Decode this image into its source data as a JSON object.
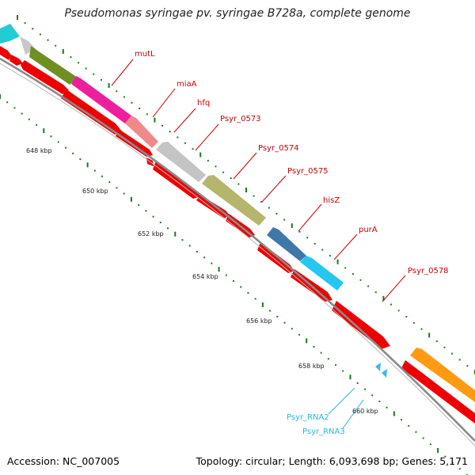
{
  "title": "Pseudomonas syringae pv. syringae B728a, complete genome",
  "footer": {
    "accession": "Accession: NC_007005",
    "summary": "Topology: circular; Length: 6,093,698 bp; Genes: 5,171"
  },
  "colors": {
    "cds": "#ee0000",
    "backbone": "#888888",
    "tick": "#1a7a1a",
    "gene_label": "#cc0000",
    "rna_label": "#22bbdd"
  },
  "ticks": [
    "648 kbp",
    "650 kbp",
    "652 kbp",
    "654 kbp",
    "656 kbp",
    "658 kbp",
    "660 kbp"
  ],
  "gene_labels": [
    "mutL",
    "miaA",
    "hfq",
    "Psyr_0573",
    "Psyr_0574",
    "Psyr_0575",
    "hisZ",
    "purA",
    "Psyr_0578"
  ],
  "rna_labels": [
    "Psyr_RNA2",
    "Psyr_RNA3"
  ]
}
